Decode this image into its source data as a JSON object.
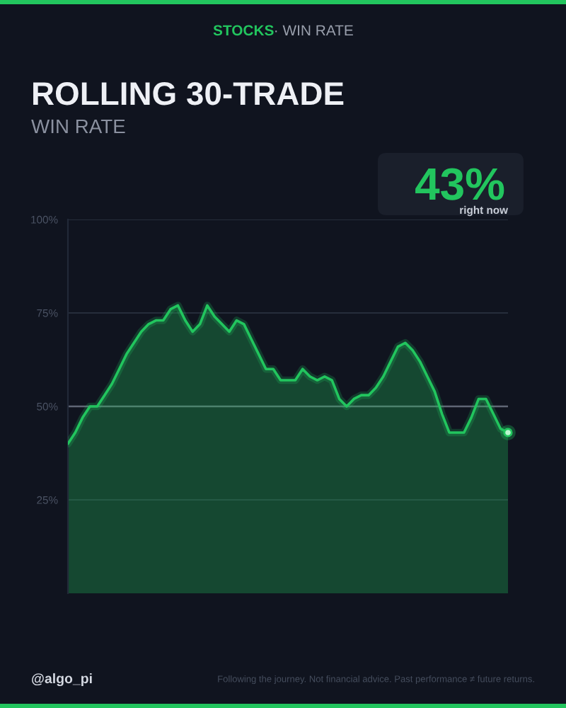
{
  "chart_data": {
    "type": "area",
    "title": "ROLLING 30-TRADE",
    "subtitle": "WIN RATE",
    "annotations": [
      "STOCKS",
      "· WIN RATE",
      "43%",
      "right now",
      "@algo_pi",
      "Following the journey. Not financial advice. Past performance ≠ future returns."
    ],
    "categories": [
      null,
      null,
      null,
      null,
      null,
      null,
      null,
      null,
      null,
      null,
      null,
      null,
      null,
      null,
      null,
      null,
      null,
      null,
      null,
      null,
      null,
      null,
      null,
      null,
      null,
      null,
      null,
      null,
      null,
      null,
      null,
      null,
      null,
      null,
      null,
      null,
      null,
      null,
      null,
      null,
      null,
      null,
      null,
      null,
      null,
      null,
      null,
      null,
      null,
      null,
      null,
      null,
      null,
      null,
      null,
      null,
      null,
      null,
      null,
      null,
      null
    ],
    "series": [
      {
        "color": "#22c55e",
        "values": [
          40,
          43,
          47,
          50,
          50,
          53,
          56,
          60,
          64,
          67,
          70,
          72,
          73,
          73,
          76,
          77,
          73,
          70,
          72,
          77,
          74,
          72,
          70,
          73,
          72,
          68,
          64,
          60,
          60,
          57,
          57,
          57,
          60,
          58,
          57,
          58,
          57,
          52,
          50,
          52,
          53,
          53,
          55,
          58,
          62,
          66,
          67,
          65,
          62,
          58,
          54,
          48,
          43,
          43,
          43,
          47,
          52,
          52,
          48,
          44,
          43
        ]
      },
      {
        "type": "scatter",
        "color": "#bbf7d0",
        "marker": "circle",
        "values": [
          null,
          null,
          null,
          null,
          null,
          null,
          null,
          null,
          null,
          null,
          null,
          null,
          null,
          null,
          null,
          null,
          null,
          null,
          null,
          null,
          null,
          null,
          null,
          null,
          null,
          null,
          null,
          null,
          null,
          null,
          null,
          null,
          null,
          null,
          null,
          null,
          null,
          null,
          null,
          null,
          null,
          null,
          null,
          null,
          null,
          null,
          null,
          null,
          null,
          null,
          null,
          null,
          null,
          null,
          null,
          null,
          null,
          null,
          null,
          null,
          43
        ]
      }
    ],
    "ylim": [
      0,
      100
    ],
    "yticks": [
      {
        "value": 25,
        "label": "25%"
      },
      {
        "value": 50,
        "label": "50%"
      },
      {
        "value": 75,
        "label": "75%"
      },
      {
        "value": 100,
        "label": "100%"
      }
    ],
    "grid": "y",
    "tick_labels": "y",
    "ref_lines": [
      {
        "axis": "y",
        "value": 50,
        "color": "#5f6675"
      }
    ]
  }
}
